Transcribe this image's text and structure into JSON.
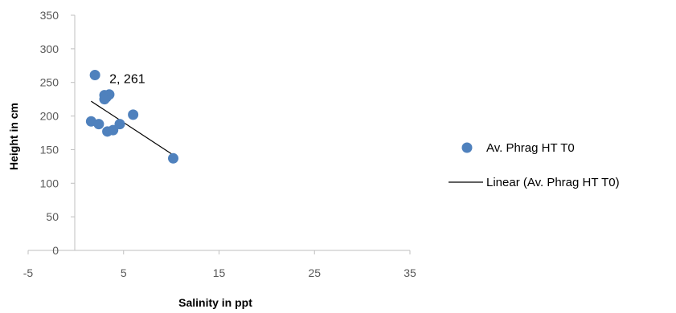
{
  "chart_data": {
    "type": "scatter",
    "title": "",
    "xlabel": "Salinity in ppt",
    "ylabel": "Height in cm",
    "xlim": [
      -5,
      35
    ],
    "ylim": [
      0,
      350
    ],
    "xticks": [
      -5,
      5,
      15,
      25,
      35
    ],
    "yticks": [
      0,
      50,
      100,
      150,
      200,
      250,
      300,
      350
    ],
    "grid": false,
    "legend_position": "right",
    "series": [
      {
        "name": "Av. Phrag HT T0",
        "color": "#4F81BD",
        "marker": "circle",
        "points": [
          {
            "x": 2.0,
            "y": 261
          },
          {
            "x": 3.0,
            "y": 231
          },
          {
            "x": 3.5,
            "y": 232
          },
          {
            "x": 3.2,
            "y": 228
          },
          {
            "x": 3.0,
            "y": 225
          },
          {
            "x": 1.6,
            "y": 192
          },
          {
            "x": 2.4,
            "y": 188
          },
          {
            "x": 4.6,
            "y": 188
          },
          {
            "x": 6.0,
            "y": 202
          },
          {
            "x": 3.3,
            "y": 177
          },
          {
            "x": 3.9,
            "y": 179
          },
          {
            "x": 10.2,
            "y": 137
          }
        ]
      }
    ],
    "trendline": {
      "name": "Linear (Av. Phrag HT T0)",
      "type": "linear",
      "color": "#000000",
      "x_range": [
        1.6,
        10.2
      ],
      "y_range": [
        222,
        142
      ]
    },
    "annotations": [
      {
        "text": "2, 261",
        "x": 2.0,
        "y": 261
      }
    ]
  }
}
